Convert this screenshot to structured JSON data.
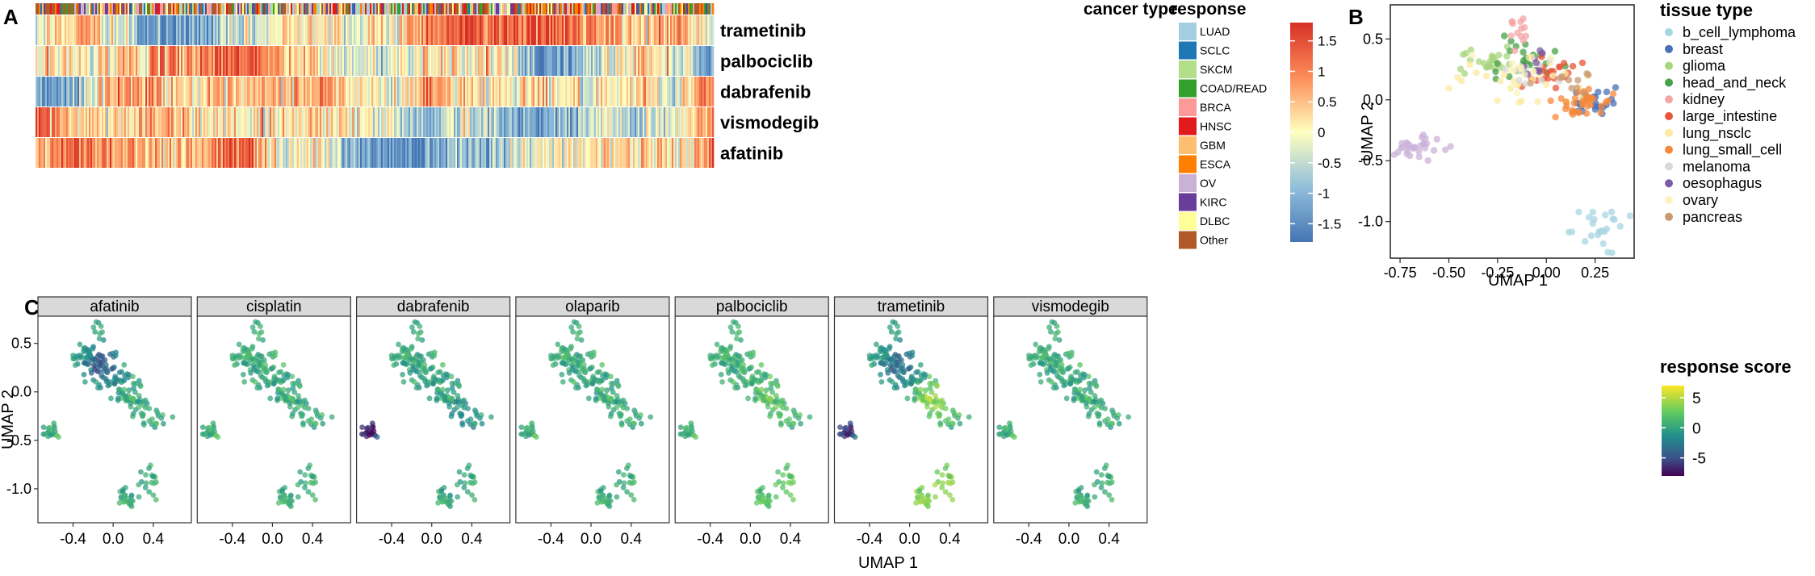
{
  "panel_labels": {
    "a": "A",
    "b": "B",
    "c": "C"
  },
  "colors": {
    "response_high": "#d73027",
    "response_mid": "#ffffbf",
    "response_low": "#4575b4",
    "score_high": "#fde725",
    "score_mid": "#21918c",
    "score_low": "#440154",
    "strip_bg": "#d9d9d9"
  },
  "chart_data": [
    {
      "id": "A",
      "type": "heatmap",
      "title": "",
      "rows": [
        "trametinib",
        "palbociclib",
        "dabrafenib",
        "vismodegib",
        "afatinib"
      ],
      "annotation_legend_title": "cancer type",
      "annotation_categories": [
        {
          "name": "LUAD",
          "color": "#a6cee3"
        },
        {
          "name": "SCLC",
          "color": "#1f78b4"
        },
        {
          "name": "SKCM",
          "color": "#b2df8a"
        },
        {
          "name": "COAD/READ",
          "color": "#33a02c"
        },
        {
          "name": "BRCA",
          "color": "#fb9a99"
        },
        {
          "name": "HNSC",
          "color": "#e31a1c"
        },
        {
          "name": "GBM",
          "color": "#fdbf6f"
        },
        {
          "name": "ESCA",
          "color": "#ff7f00"
        },
        {
          "name": "OV",
          "color": "#cab2d6"
        },
        {
          "name": "KIRC",
          "color": "#6a3d9a"
        },
        {
          "name": "DLBC",
          "color": "#ffff99"
        },
        {
          "name": "Other",
          "color": "#b15928"
        }
      ],
      "colorbar_title": "response",
      "colorbar_ticks": [
        "1.5",
        "1",
        "0.5",
        "0",
        "-0.5",
        "-1",
        "-1.5"
      ],
      "colorbar_range": [
        -1.8,
        1.8
      ],
      "row_profiles": [
        [
          -0.3,
          0.6,
          0.2,
          -1.3,
          -1.5,
          -1.0,
          -0.4,
          0.1,
          0.5,
          -0.2,
          0.0,
          1.2,
          1.4,
          1.5,
          1.3,
          1.2,
          0.6,
          0.3,
          0.8,
          -0.4
        ],
        [
          0.2,
          0.0,
          0.3,
          0.5,
          0.8,
          1.2,
          1.5,
          0.4,
          0.1,
          -0.4,
          -0.2,
          0.3,
          0.2,
          0.1,
          -1.4,
          -1.2,
          -0.3,
          0.4,
          0.0,
          -1.3
        ],
        [
          -1.3,
          -1.1,
          0.6,
          0.9,
          0.4,
          0.1,
          0.3,
          0.5,
          0.8,
          0.1,
          -0.3,
          0.9,
          0.3,
          0.1,
          0.4,
          0.0,
          -0.4,
          0.3,
          -0.3,
          1.3
        ],
        [
          1.3,
          0.5,
          0.2,
          0.6,
          0.4,
          0.3,
          0.1,
          0.2,
          0.5,
          0.0,
          -0.3,
          -0.9,
          -0.2,
          -1.0,
          -1.2,
          -1.0,
          -0.3,
          -0.5,
          -0.2,
          0.9
        ],
        [
          0.4,
          1.2,
          1.0,
          0.7,
          0.5,
          0.9,
          1.3,
          -0.2,
          0.1,
          -1.2,
          -1.4,
          -1.2,
          -0.6,
          -0.8,
          -0.2,
          0.1,
          0.4,
          0.2,
          0.3,
          0.6
        ]
      ]
    },
    {
      "id": "B",
      "type": "scatter",
      "title": "",
      "xlabel": "UMAP 1",
      "ylabel": "UMAP 2",
      "xlim": [
        -0.8,
        0.45
      ],
      "ylim": [
        -1.3,
        0.78
      ],
      "xticks": [
        "-0.75",
        "-0.50",
        "-0.25",
        "0.00",
        "0.25"
      ],
      "xtick_values": [
        -0.75,
        -0.5,
        -0.25,
        0.0,
        0.25
      ],
      "yticks": [
        "0.5",
        "0.0",
        "-0.5",
        "-1.0"
      ],
      "ytick_values": [
        0.5,
        0.0,
        -0.5,
        -1.0
      ],
      "legend_title": "tissue type",
      "legend_position": "right",
      "clusters": [
        {
          "name": "b_cell_lymphoma",
          "color": "#a8d5e2",
          "cx": 0.3,
          "cy": -1.05,
          "sx": 0.08,
          "sy": 0.11,
          "n": 28
        },
        {
          "name": "breast",
          "color": "#4a6fb5",
          "cx": 0.25,
          "cy": 0.0,
          "sx": 0.08,
          "sy": 0.06,
          "n": 22
        },
        {
          "name": "glioma",
          "color": "#a8d57e",
          "cx": -0.28,
          "cy": 0.32,
          "sx": 0.06,
          "sy": 0.06,
          "n": 26
        },
        {
          "name": "head_and_neck",
          "color": "#46a246",
          "cx": -0.12,
          "cy": 0.3,
          "sx": 0.09,
          "sy": 0.1,
          "n": 26
        },
        {
          "name": "kidney",
          "color": "#f4a6a6",
          "cx": -0.13,
          "cy": 0.58,
          "sx": 0.04,
          "sy": 0.09,
          "n": 14
        },
        {
          "name": "large_intestine",
          "color": "#e8563a",
          "cx": 0.0,
          "cy": 0.22,
          "sx": 0.08,
          "sy": 0.08,
          "n": 24
        },
        {
          "name": "lung_nsclc",
          "color": "#fde9a0",
          "cx": -0.1,
          "cy": 0.15,
          "sx": 0.17,
          "sy": 0.13,
          "n": 30
        },
        {
          "name": "lung_small_cell",
          "color": "#f5883a",
          "cx": 0.18,
          "cy": -0.02,
          "sx": 0.09,
          "sy": 0.06,
          "n": 36
        },
        {
          "name": "melanoma",
          "color": "#d8d8d8",
          "cx": -0.05,
          "cy": 0.2,
          "sx": 0.09,
          "sy": 0.08,
          "n": 12
        },
        {
          "name": "oesophagus",
          "color": "#7c5ca8",
          "cx": -0.05,
          "cy": 0.28,
          "sx": 0.05,
          "sy": 0.05,
          "n": 8
        },
        {
          "name": "ovary",
          "color": "#f9f3bd",
          "cx": -0.12,
          "cy": 0.25,
          "sx": 0.09,
          "sy": 0.08,
          "n": 12
        },
        {
          "name": "pancreas",
          "color": "#c89a70",
          "cx": 0.1,
          "cy": 0.15,
          "sx": 0.08,
          "sy": 0.07,
          "n": 10
        },
        {
          "name": "",
          "color": "#cbb3d9",
          "cx": -0.65,
          "cy": -0.38,
          "sx": 0.06,
          "sy": 0.04,
          "n": 30
        }
      ]
    },
    {
      "id": "C",
      "type": "scatter",
      "title": "",
      "xlabel": "UMAP 1",
      "ylabel": "UMAP 2",
      "xlim": [
        -0.75,
        0.78
      ],
      "ylim": [
        -1.35,
        0.78
      ],
      "xticks": [
        "-0.4",
        "0.0",
        "0.4"
      ],
      "xtick_values": [
        -0.4,
        0.0,
        0.4
      ],
      "yticks": [
        "0.5",
        "0.0",
        "-0.5",
        "-1.0"
      ],
      "ytick_values": [
        0.5,
        0.0,
        -0.5,
        -1.0
      ],
      "legend_title": "response score",
      "legend_position": "right",
      "colorbar_ticks": [
        "5",
        "0",
        "-5"
      ],
      "colorbar_tick_values": [
        5,
        0,
        -5
      ],
      "colorbar_range": [
        -8,
        7
      ],
      "facets": [
        {
          "name": "afatinib",
          "base": 0.4,
          "hotspots": [
            {
              "cx": -0.1,
              "cy": 0.3,
              "r": 0.15,
              "delta": -5
            }
          ]
        },
        {
          "name": "cisplatin",
          "base": 0.5,
          "hotspots": []
        },
        {
          "name": "dabrafenib",
          "base": 0.2,
          "hotspots": [
            {
              "cx": -0.6,
              "cy": -0.4,
              "r": 0.12,
              "delta": -8
            },
            {
              "cx": 0.3,
              "cy": -0.3,
              "r": 0.15,
              "delta": -2
            }
          ]
        },
        {
          "name": "olaparib",
          "base": 0.5,
          "hotspots": []
        },
        {
          "name": "palbociclib",
          "base": 0.7,
          "hotspots": [
            {
              "cx": 0.2,
              "cy": -0.1,
              "r": 0.2,
              "delta": 1.5
            },
            {
              "cx": 0.3,
              "cy": -1.0,
              "r": 0.2,
              "delta": 2
            }
          ]
        },
        {
          "name": "trametinib",
          "base": 0.3,
          "hotspots": [
            {
              "cx": -0.6,
              "cy": -0.4,
              "r": 0.12,
              "delta": -7
            },
            {
              "cx": -0.05,
              "cy": 0.3,
              "r": 0.18,
              "delta": -4
            },
            {
              "cx": 0.25,
              "cy": -0.05,
              "r": 0.18,
              "delta": 4
            },
            {
              "cx": 0.25,
              "cy": -1.0,
              "r": 0.25,
              "delta": 4
            }
          ]
        },
        {
          "name": "vismodegib",
          "base": 0.5,
          "hotspots": []
        }
      ],
      "shape_points": [
        [
          -0.62,
          -0.42,
          0.05,
          0.04,
          20
        ],
        [
          -0.28,
          0.38,
          0.07,
          0.07,
          30
        ],
        [
          -0.15,
          0.62,
          0.03,
          0.07,
          10
        ],
        [
          -0.12,
          0.28,
          0.09,
          0.07,
          40
        ],
        [
          0.02,
          0.12,
          0.1,
          0.07,
          40
        ],
        [
          0.15,
          -0.05,
          0.07,
          0.05,
          30
        ],
        [
          0.28,
          -0.2,
          0.05,
          0.07,
          20
        ],
        [
          0.5,
          -0.3,
          0.06,
          0.05,
          12
        ],
        [
          0.15,
          -1.1,
          0.07,
          0.07,
          22
        ],
        [
          0.35,
          -0.9,
          0.06,
          0.08,
          18
        ]
      ]
    }
  ]
}
